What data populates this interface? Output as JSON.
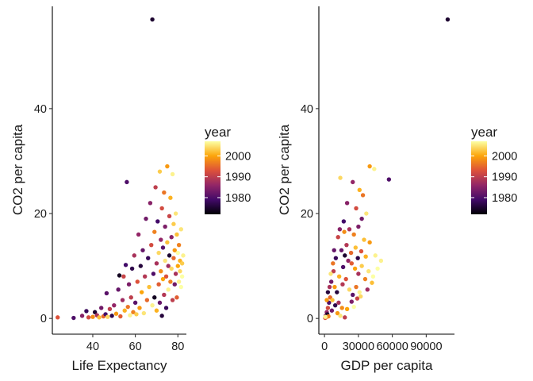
{
  "chart_data": [
    {
      "type": "scatter",
      "xlabel": "Life Expectancy",
      "ylabel": "CO2 per capita",
      "xlim": [
        21,
        84
      ],
      "ylim": [
        -3,
        59.5
      ],
      "xticks": [
        40,
        60,
        80
      ],
      "yticks": [
        0,
        20,
        40
      ],
      "xtick_labels": [
        "40",
        "60",
        "80"
      ],
      "ytick_labels": [
        "0",
        "20",
        "40"
      ],
      "grid": false,
      "legend": {
        "title": "year",
        "placement": "right",
        "type": "colorbar",
        "palette": [
          "#000004",
          "#420a68",
          "#932667",
          "#dd513a",
          "#fca50a",
          "#fcffa4"
        ],
        "range": [
          1972,
          2007
        ],
        "ticks": [
          1980,
          1990,
          2000
        ],
        "tick_labels": [
          "1980",
          "1990",
          "2000"
        ]
      },
      "points": [
        [
          68,
          57,
          1975
        ],
        [
          23.5,
          0.2,
          1993
        ],
        [
          31,
          0.1,
          1980
        ],
        [
          35,
          0.5,
          1985
        ],
        [
          37,
          1.4,
          1978
        ],
        [
          38,
          0.2,
          1992
        ],
        [
          40,
          0.3,
          1998
        ],
        [
          41,
          1.2,
          1975
        ],
        [
          42,
          0.6,
          1988
        ],
        [
          43,
          0.2,
          2002
        ],
        [
          44,
          2.0,
          1983
        ],
        [
          45,
          0.4,
          1995
        ],
        [
          46,
          0.8,
          1979
        ],
        [
          46.5,
          4.8,
          1981
        ],
        [
          47,
          0.3,
          2004
        ],
        [
          48,
          1.8,
          1990
        ],
        [
          49,
          0.5,
          1977
        ],
        [
          50,
          2.5,
          1986
        ],
        [
          51,
          0.9,
          1999
        ],
        [
          52,
          5.5,
          1982
        ],
        [
          52.5,
          8.2,
          1974
        ],
        [
          53,
          0.4,
          1994
        ],
        [
          54,
          3.5,
          1987
        ],
        [
          54.5,
          8.0,
          1991
        ],
        [
          55,
          1.5,
          2001
        ],
        [
          55.5,
          10.2,
          1979
        ],
        [
          56,
          26.0,
          1980
        ],
        [
          56.5,
          2.2,
          1996
        ],
        [
          57,
          6.5,
          1984
        ],
        [
          57.5,
          0.6,
          2006
        ],
        [
          58,
          4.0,
          1990
        ],
        [
          58.5,
          9.5,
          1977
        ],
        [
          59,
          1.2,
          1997
        ],
        [
          59.5,
          12.0,
          1988
        ],
        [
          60,
          3.0,
          1981
        ],
        [
          60.5,
          0.8,
          2003
        ],
        [
          61,
          7.0,
          1993
        ],
        [
          61.5,
          16.0,
          1986
        ],
        [
          62,
          2.0,
          1999
        ],
        [
          62.5,
          10.0,
          1976
        ],
        [
          63,
          5.0,
          2000
        ],
        [
          63.5,
          13.0,
          1982
        ],
        [
          64,
          1.0,
          2005
        ],
        [
          64.5,
          8.0,
          1989
        ],
        [
          65,
          19.0,
          1983
        ],
        [
          65.5,
          3.5,
          1995
        ],
        [
          66,
          11.5,
          1978
        ],
        [
          66.5,
          6.0,
          2002
        ],
        [
          67,
          22.0,
          1985
        ],
        [
          67.5,
          14.0,
          1992
        ],
        [
          68,
          2.5,
          2006
        ],
        [
          68.5,
          8.5,
          1980
        ],
        [
          69,
          16.5,
          1997
        ],
        [
          69,
          4.0,
          1974
        ],
        [
          69.5,
          25.0,
          1990
        ],
        [
          70,
          10.5,
          1988
        ],
        [
          70,
          1.5,
          2001
        ],
        [
          70.5,
          18.5,
          1979
        ],
        [
          71,
          6.5,
          1994
        ],
        [
          71,
          12.5,
          2004
        ],
        [
          71.5,
          28.0,
          2003
        ],
        [
          71.5,
          3.0,
          1982
        ],
        [
          72,
          15.0,
          1986
        ],
        [
          72,
          9.0,
          1998
        ],
        [
          72.5,
          21.0,
          1992
        ],
        [
          72.5,
          0.5,
          1976
        ],
        [
          73,
          7.5,
          2000
        ],
        [
          73,
          13.5,
          1981
        ],
        [
          73.5,
          24.0,
          1996
        ],
        [
          73.5,
          4.5,
          1989
        ],
        [
          74,
          11.0,
          2005
        ],
        [
          74,
          17.5,
          1984
        ],
        [
          74.5,
          8.0,
          1993
        ],
        [
          74.5,
          2.0,
          1978
        ],
        [
          75,
          14.5,
          2002
        ],
        [
          75,
          29.0,
          1999
        ],
        [
          75.5,
          10.0,
          1987
        ],
        [
          75.5,
          5.5,
          2006
        ],
        [
          76,
          19.5,
          1991
        ],
        [
          76,
          12.0,
          1975
        ],
        [
          76.5,
          7.0,
          1997
        ],
        [
          76.5,
          23.0,
          2001
        ],
        [
          77,
          15.5,
          1985
        ],
        [
          77,
          9.5,
          2004
        ],
        [
          77.5,
          3.5,
          1990
        ],
        [
          77.5,
          27.5,
          2006
        ],
        [
          78,
          11.5,
          1995
        ],
        [
          78,
          18.0,
          2003
        ],
        [
          78.5,
          6.5,
          1983
        ],
        [
          78.5,
          13.0,
          1999
        ],
        [
          79,
          20.0,
          2005
        ],
        [
          79,
          8.5,
          1988
        ],
        [
          79.5,
          16.0,
          2002
        ],
        [
          79.5,
          4.0,
          1994
        ],
        [
          80,
          12.5,
          2007
        ],
        [
          80,
          10.0,
          2000
        ],
        [
          80.5,
          7.0,
          2006
        ],
        [
          80.5,
          14.0,
          1997
        ],
        [
          81,
          9.0,
          2004
        ],
        [
          81,
          11.0,
          2001
        ],
        [
          81.5,
          6.0,
          2007
        ],
        [
          81.5,
          17.0,
          2005
        ],
        [
          82,
          10.5,
          2003
        ],
        [
          82,
          8.0,
          2007
        ],
        [
          82.5,
          12.0,
          2006
        ]
      ]
    },
    {
      "type": "scatter",
      "xlabel": "GDP per capita",
      "ylabel": "CO2 per capita",
      "xlim": [
        -5000,
        115000
      ],
      "ylim": [
        -3,
        59.5
      ],
      "xticks": [
        0,
        30000,
        60000,
        90000
      ],
      "yticks": [
        0,
        20,
        40
      ],
      "xtick_labels": [
        "0",
        "30000",
        "60000",
        "90000"
      ],
      "ytick_labels": [
        "0",
        "20",
        "40"
      ],
      "grid": false,
      "legend": {
        "title": "year",
        "placement": "right",
        "type": "colorbar",
        "palette": [
          "#000004",
          "#420a68",
          "#932667",
          "#dd513a",
          "#fca50a",
          "#fcffa4"
        ],
        "range": [
          1972,
          2007
        ],
        "ticks": [
          1980,
          1990,
          2000
        ],
        "tick_labels": [
          "1980",
          "1990",
          "2000"
        ]
      },
      "points": [
        [
          109000,
          57,
          1975
        ],
        [
          57000,
          26.5,
          1980
        ],
        [
          40000,
          29,
          1999
        ],
        [
          44000,
          28.5,
          2006
        ],
        [
          34000,
          23.5,
          1996
        ],
        [
          25000,
          26.0,
          1986
        ],
        [
          14000,
          26.8,
          2004
        ],
        [
          20000,
          22.0,
          1985
        ],
        [
          28000,
          21.0,
          1992
        ],
        [
          31000,
          24.5,
          2001
        ],
        [
          33000,
          19.0,
          1983
        ],
        [
          37000,
          20.0,
          2005
        ],
        [
          17000,
          18.5,
          1979
        ],
        [
          22000,
          17.0,
          1988
        ],
        [
          26000,
          16.0,
          1997
        ],
        [
          30000,
          17.5,
          1984
        ],
        [
          35000,
          15.0,
          2002
        ],
        [
          40000,
          14.5,
          1999
        ],
        [
          45000,
          12.0,
          2006
        ],
        [
          12000,
          15.5,
          1991
        ],
        [
          15000,
          13.0,
          1982
        ],
        [
          18000,
          12.0,
          1975
        ],
        [
          21000,
          11.0,
          1986
        ],
        [
          24000,
          10.5,
          1994
        ],
        [
          27000,
          9.5,
          2000
        ],
        [
          30000,
          8.5,
          1988
        ],
        [
          33000,
          10.0,
          2003
        ],
        [
          36000,
          7.5,
          1997
        ],
        [
          39000,
          9.0,
          2005
        ],
        [
          43000,
          8.0,
          2007
        ],
        [
          10000,
          11.5,
          1978
        ],
        [
          8000,
          9.0,
          1990
        ],
        [
          6000,
          7.0,
          1983
        ],
        [
          9000,
          6.0,
          1999
        ],
        [
          11000,
          5.0,
          1976
        ],
        [
          13000,
          8.0,
          2001
        ],
        [
          16000,
          6.5,
          1989
        ],
        [
          19000,
          7.5,
          1993
        ],
        [
          22000,
          5.5,
          2004
        ],
        [
          25000,
          4.5,
          1981
        ],
        [
          28000,
          6.0,
          1996
        ],
        [
          31000,
          5.0,
          2006
        ],
        [
          4000,
          3.0,
          1980
        ],
        [
          3000,
          2.0,
          1992
        ],
        [
          2000,
          1.2,
          1986
        ],
        [
          5000,
          4.0,
          1995
        ],
        [
          7000,
          3.5,
          2002
        ],
        [
          9500,
          2.5,
          1977
        ],
        [
          12500,
          3.0,
          1988
        ],
        [
          15500,
          2.0,
          1998
        ],
        [
          1000,
          0.5,
          1985
        ],
        [
          1500,
          0.2,
          2003
        ],
        [
          2500,
          0.8,
          1975
        ],
        [
          3500,
          0.4,
          1997
        ],
        [
          600,
          0.1,
          1993
        ],
        [
          800,
          0.3,
          2006
        ],
        [
          6500,
          1.5,
          1983
        ],
        [
          11500,
          1.0,
          1999
        ],
        [
          14000,
          0.5,
          2005
        ],
        [
          18000,
          0.2,
          1990
        ],
        [
          20000,
          1.8,
          2000
        ],
        [
          24000,
          3.2,
          1984
        ],
        [
          26000,
          2.2,
          2007
        ],
        [
          29000,
          3.8,
          1991
        ],
        [
          32000,
          4.2,
          2004
        ],
        [
          38000,
          5.5,
          1987
        ],
        [
          42000,
          6.8,
          2002
        ],
        [
          47000,
          9.5,
          2007
        ],
        [
          50000,
          11.0,
          2006
        ],
        [
          16500,
          9.8,
          1980
        ],
        [
          19500,
          14.0,
          1989
        ],
        [
          23500,
          12.5,
          1995
        ],
        [
          27500,
          13.5,
          2002
        ],
        [
          29500,
          11.5,
          1977
        ],
        [
          32500,
          12.8,
          1993
        ],
        [
          36500,
          11.8,
          2001
        ],
        [
          13500,
          17.0,
          1985
        ],
        [
          17500,
          16.5,
          1998
        ],
        [
          8500,
          13.0,
          1982
        ],
        [
          7500,
          10.5,
          1996
        ],
        [
          5500,
          8.5,
          2005
        ],
        [
          4500,
          6.0,
          1988
        ],
        [
          3000,
          5.0,
          1976
        ],
        [
          2000,
          3.5,
          1999
        ]
      ]
    }
  ]
}
